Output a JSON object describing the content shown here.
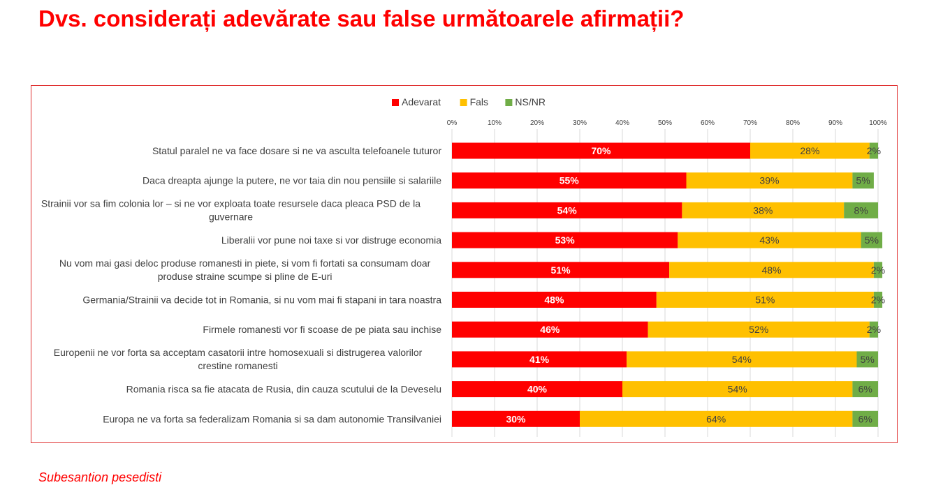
{
  "title": "Dvs. considerați adevărate sau false următoarele afirmații?",
  "footnote": "Subesantion pesedisti",
  "chart_data": {
    "type": "bar",
    "orientation": "horizontal",
    "stacked": true,
    "title": "",
    "xlabel": "",
    "ylabel": "",
    "xlim": [
      0,
      100
    ],
    "x_ticks": [
      "0%",
      "10%",
      "20%",
      "30%",
      "40%",
      "50%",
      "60%",
      "70%",
      "80%",
      "90%",
      "100%"
    ],
    "legend_position": "top",
    "grid": true,
    "categories": [
      "Statul paralel ne va face dosare si ne va asculta telefoanele tuturor",
      "Daca dreapta ajunge la putere, ne vor taia din nou pensiile si salariile",
      "Strainii vor sa fim colonia lor – si ne vor exploata toate resursele daca pleaca PSD de la guvernare",
      "Liberalii vor pune noi taxe si vor distruge economia",
      "Nu vom mai gasi deloc produse romanesti in piete, si vom fi fortati sa consumam doar produse straine scumpe si pline de E-uri",
      "Germania/Strainii va decide tot in Romania, si nu vom mai fi stapani in tara noastra",
      "Firmele romanesti vor fi scoase de pe piata sau inchise",
      "Europenii ne vor forta sa acceptam casatorii intre homosexuali si distrugerea valorilor crestine romanesti",
      "Romania risca sa  fie atacata de Rusia, din cauza scutului de la Deveselu",
      "Europa ne va forta sa federalizam Romania si sa dam autonomie Transilvaniei"
    ],
    "category_lines": [
      [
        "Statul paralel ne va face dosare si ne va asculta telefoanele tuturor"
      ],
      [
        "Daca dreapta ajunge la putere, ne vor taia din nou pensiile si salariile"
      ],
      [
        "Strainii vor sa fim colonia lor – si ne vor exploata toate resursele daca pleaca PSD de la",
        "guvernare"
      ],
      [
        "Liberalii vor pune noi taxe si vor distruge economia"
      ],
      [
        "Nu vom mai gasi deloc produse romanesti in piete, si vom fi fortati sa consumam doar",
        "produse straine scumpe si pline de E-uri"
      ],
      [
        "Germania/Strainii va decide tot in Romania, si nu vom mai fi stapani in tara noastra"
      ],
      [
        "Firmele romanesti vor fi scoase de pe piata sau inchise"
      ],
      [
        "Europenii ne vor forta sa acceptam casatorii intre homosexuali si distrugerea valorilor",
        "crestine romanesti"
      ],
      [
        "Romania risca sa  fie atacata de Rusia, din cauza scutului de la Deveselu"
      ],
      [
        "Europa ne va forta sa federalizam Romania si sa dam autonomie Transilvaniei"
      ]
    ],
    "series": [
      {
        "name": "Adevarat",
        "color": "#ff0000",
        "label_color": "#ffffff",
        "values": [
          70,
          55,
          54,
          53,
          51,
          48,
          46,
          41,
          40,
          30
        ],
        "labels": [
          "70%",
          "55%",
          "54%",
          "53%",
          "51%",
          "48%",
          "46%",
          "41%",
          "40%",
          "30%"
        ]
      },
      {
        "name": "Fals",
        "color": "#ffc000",
        "label_color": "#404040",
        "values": [
          28,
          39,
          38,
          43,
          48,
          51,
          52,
          54,
          54,
          64
        ],
        "labels": [
          "28%",
          "39%",
          "38%",
          "43%",
          "48%",
          "51%",
          "52%",
          "54%",
          "54%",
          "64%"
        ]
      },
      {
        "name": "NS/NR",
        "color": "#70ad47",
        "label_color": "#404040",
        "values": [
          2,
          5,
          8,
          5,
          2,
          2,
          2,
          5,
          6,
          6
        ],
        "labels": [
          "2%",
          "5%",
          "8%",
          "5%",
          "2%",
          "2%",
          "2%",
          "5%",
          "6%",
          "6%"
        ]
      }
    ]
  }
}
